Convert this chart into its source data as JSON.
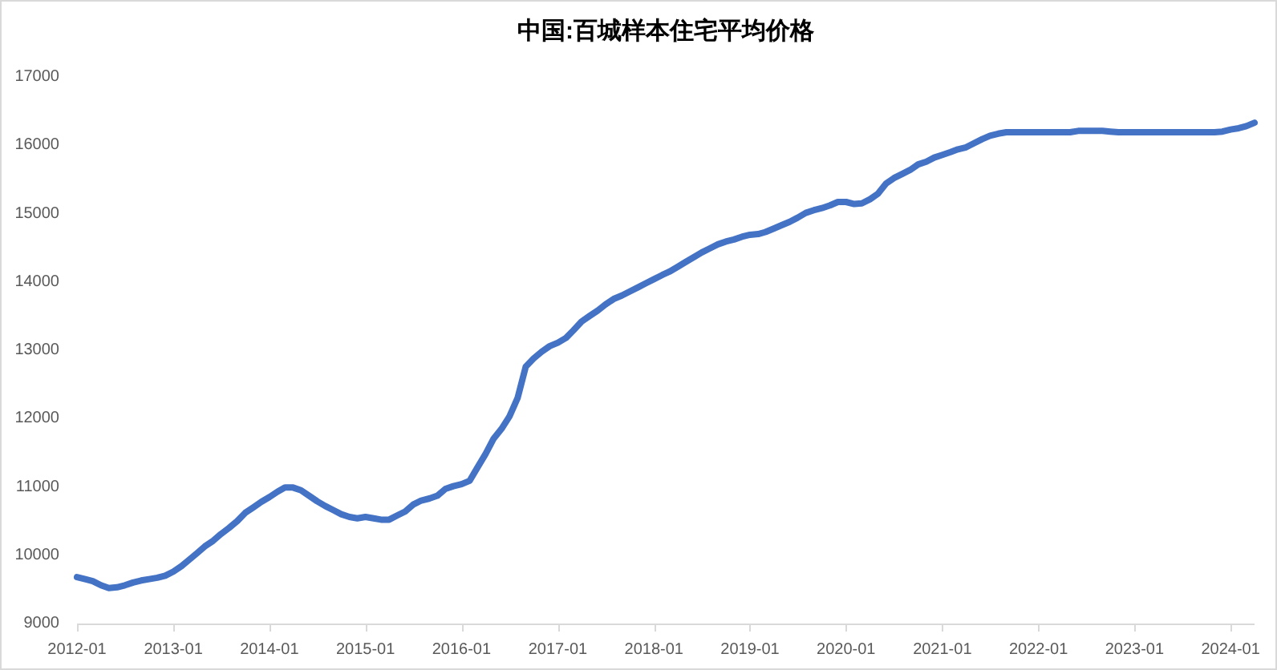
{
  "chart_data": {
    "type": "line",
    "title": "中国:百城样本住宅平均价格",
    "x": [
      "2012-01",
      "2012-02",
      "2012-03",
      "2012-04",
      "2012-05",
      "2012-06",
      "2012-07",
      "2012-08",
      "2012-09",
      "2012-10",
      "2012-11",
      "2012-12",
      "2013-01",
      "2013-02",
      "2013-03",
      "2013-04",
      "2013-05",
      "2013-06",
      "2013-07",
      "2013-08",
      "2013-09",
      "2013-10",
      "2013-11",
      "2013-12",
      "2014-01",
      "2014-02",
      "2014-03",
      "2014-04",
      "2014-05",
      "2014-06",
      "2014-07",
      "2014-08",
      "2014-09",
      "2014-10",
      "2014-11",
      "2014-12",
      "2015-01",
      "2015-02",
      "2015-03",
      "2015-04",
      "2015-05",
      "2015-06",
      "2015-07",
      "2015-08",
      "2015-09",
      "2015-10",
      "2015-11",
      "2015-12",
      "2016-01",
      "2016-02",
      "2016-03",
      "2016-04",
      "2016-05",
      "2016-06",
      "2016-07",
      "2016-08",
      "2016-09",
      "2016-10",
      "2016-11",
      "2016-12",
      "2017-01",
      "2017-02",
      "2017-03",
      "2017-04",
      "2017-05",
      "2017-06",
      "2017-07",
      "2017-08",
      "2017-09",
      "2017-10",
      "2017-11",
      "2017-12",
      "2018-01",
      "2018-02",
      "2018-03",
      "2018-04",
      "2018-05",
      "2018-06",
      "2018-07",
      "2018-08",
      "2018-09",
      "2018-10",
      "2018-11",
      "2018-12",
      "2019-01",
      "2019-02",
      "2019-03",
      "2019-04",
      "2019-05",
      "2019-06",
      "2019-07",
      "2019-08",
      "2019-09",
      "2019-10",
      "2019-11",
      "2019-12",
      "2020-01",
      "2020-02",
      "2020-03",
      "2020-04",
      "2020-05",
      "2020-06",
      "2020-07",
      "2020-08",
      "2020-09",
      "2020-10",
      "2020-11",
      "2020-12",
      "2021-01",
      "2021-02",
      "2021-03",
      "2021-04",
      "2021-05",
      "2021-06",
      "2021-07",
      "2021-08",
      "2021-09",
      "2021-10",
      "2021-11",
      "2021-12",
      "2022-01",
      "2022-02",
      "2022-03",
      "2022-04",
      "2022-05",
      "2022-06",
      "2022-07",
      "2022-08",
      "2022-09",
      "2022-10",
      "2022-11",
      "2022-12",
      "2023-01",
      "2023-02",
      "2023-03",
      "2023-04",
      "2023-05",
      "2023-06",
      "2023-07",
      "2023-08",
      "2023-09",
      "2023-10",
      "2023-11",
      "2023-12",
      "2024-01",
      "2024-02",
      "2024-03",
      "2024-04"
    ],
    "series": [
      {
        "color": "#4472c4",
        "values": [
          9680,
          9650,
          9620,
          9560,
          9520,
          9530,
          9560,
          9600,
          9630,
          9650,
          9670,
          9700,
          9760,
          9840,
          9930,
          10030,
          10130,
          10210,
          10310,
          10400,
          10500,
          10620,
          10700,
          10780,
          10850,
          10930,
          10990,
          10990,
          10950,
          10870,
          10790,
          10720,
          10660,
          10600,
          10560,
          10540,
          10560,
          10540,
          10520,
          10520,
          10580,
          10640,
          10740,
          10800,
          10830,
          10870,
          10970,
          11010,
          11040,
          11090,
          11280,
          11480,
          11700,
          11850,
          12030,
          12300,
          12760,
          12880,
          12980,
          13060,
          13110,
          13180,
          13290,
          13420,
          13500,
          13580,
          13670,
          13750,
          13800,
          13860,
          13920,
          13980,
          14040,
          14100,
          14150,
          14220,
          14290,
          14360,
          14430,
          14490,
          14550,
          14590,
          14620,
          14660,
          14690,
          14700,
          14730,
          14780,
          14830,
          14880,
          14940,
          15010,
          15050,
          15080,
          15120,
          15170,
          15170,
          15140,
          15150,
          15210,
          15290,
          15440,
          15520,
          15580,
          15640,
          15720,
          15760,
          15820,
          15860,
          15900,
          15940,
          15970,
          16030,
          16090,
          16140,
          16170,
          16190,
          16190,
          16190,
          16190,
          16190,
          16190,
          16190,
          16190,
          16190,
          16210,
          16210,
          16210,
          16210,
          16200,
          16190,
          16190,
          16190,
          16190,
          16190,
          16190,
          16190,
          16190,
          16190,
          16190,
          16190,
          16190,
          16190,
          16200,
          16230,
          16250,
          16280,
          16330
        ]
      }
    ],
    "xlim": [
      "2012-01",
      "2024-04"
    ],
    "xticks": [
      "2012-01",
      "2013-01",
      "2014-01",
      "2015-01",
      "2016-01",
      "2017-01",
      "2018-01",
      "2019-01",
      "2020-01",
      "2021-01",
      "2022-01",
      "2023-01",
      "2024-01"
    ],
    "ylim": [
      9000,
      17000
    ],
    "yticks": [
      9000,
      10000,
      11000,
      12000,
      13000,
      14000,
      15000,
      16000,
      17000
    ],
    "grid": false,
    "line_style": "solid"
  }
}
